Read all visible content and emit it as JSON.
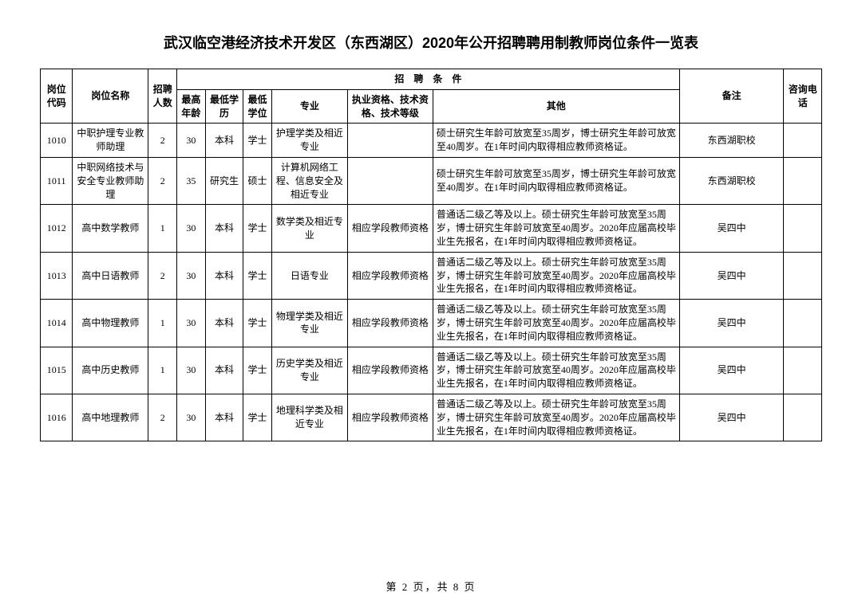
{
  "document": {
    "title": "武汉临空港经济技术开发区（东西湖区）2020年公开招聘聘用制教师岗位条件一览表",
    "pager": "第 2 页，共 8 页"
  },
  "headers": {
    "code": "岗位代码",
    "name": "岗位名称",
    "count": "招聘人数",
    "condGroup": "招　聘　条　件",
    "maxAge": "最高年龄",
    "minEdu": "最低学历",
    "minDeg": "最低学位",
    "major": "专业",
    "qualification": "执业资格、技术资格、技术等级",
    "other": "其他",
    "remark": "备注",
    "phone": "咨询电话"
  },
  "rows": [
    {
      "code": "1010",
      "name": "中职护理专业教师助理",
      "count": "2",
      "age": "30",
      "edu": "本科",
      "deg": "学士",
      "major": "护理学类及相近专业",
      "qual": "",
      "other": "硕士研究生年龄可放宽至35周岁，博士研究生年龄可放宽至40周岁。在1年时间内取得相应教师资格证。",
      "remark": "东西湖职校",
      "phone": ""
    },
    {
      "code": "1011",
      "name": "中职网络技术与安全专业教师助理",
      "count": "2",
      "age": "35",
      "edu": "研究生",
      "deg": "硕士",
      "major": "计算机网络工程、信息安全及相近专业",
      "qual": "",
      "other": "硕士研究生年龄可放宽至35周岁，博士研究生年龄可放宽至40周岁。在1年时间内取得相应教师资格证。",
      "remark": "东西湖职校",
      "phone": ""
    },
    {
      "code": "1012",
      "name": "高中数学教师",
      "count": "1",
      "age": "30",
      "edu": "本科",
      "deg": "学士",
      "major": "数学类及相近专业",
      "qual": "相应学段教师资格",
      "other": "普通话二级乙等及以上。硕士研究生年龄可放宽至35周岁，博士研究生年龄可放宽至40周岁。2020年应届高校毕业生先报名，在1年时间内取得相应教师资格证。",
      "remark": "吴四中",
      "phone": ""
    },
    {
      "code": "1013",
      "name": "高中日语教师",
      "count": "2",
      "age": "30",
      "edu": "本科",
      "deg": "学士",
      "major": "日语专业",
      "qual": "相应学段教师资格",
      "other": "普通话二级乙等及以上。硕士研究生年龄可放宽至35周岁，博士研究生年龄可放宽至40周岁。2020年应届高校毕业生先报名，在1年时间内取得相应教师资格证。",
      "remark": "吴四中",
      "phone": ""
    },
    {
      "code": "1014",
      "name": "高中物理教师",
      "count": "1",
      "age": "30",
      "edu": "本科",
      "deg": "学士",
      "major": "物理学类及相近专业",
      "qual": "相应学段教师资格",
      "other": "普通话二级乙等及以上。硕士研究生年龄可放宽至35周岁，博士研究生年龄可放宽至40周岁。2020年应届高校毕业生先报名，在1年时间内取得相应教师资格证。",
      "remark": "吴四中",
      "phone": ""
    },
    {
      "code": "1015",
      "name": "高中历史教师",
      "count": "1",
      "age": "30",
      "edu": "本科",
      "deg": "学士",
      "major": "历史学类及相近专业",
      "qual": "相应学段教师资格",
      "other": "普通话二级乙等及以上。硕士研究生年龄可放宽至35周岁，博士研究生年龄可放宽至40周岁。2020年应届高校毕业生先报名，在1年时间内取得相应教师资格证。",
      "remark": "吴四中",
      "phone": ""
    },
    {
      "code": "1016",
      "name": "高中地理教师",
      "count": "2",
      "age": "30",
      "edu": "本科",
      "deg": "学士",
      "major": "地理科学类及相近专业",
      "qual": "相应学段教师资格",
      "other": "普通话二级乙等及以上。硕士研究生年龄可放宽至35周岁，博士研究生年龄可放宽至40周岁。2020年应届高校毕业生先报名，在1年时间内取得相应教师资格证。",
      "remark": "吴四中",
      "phone": ""
    }
  ]
}
